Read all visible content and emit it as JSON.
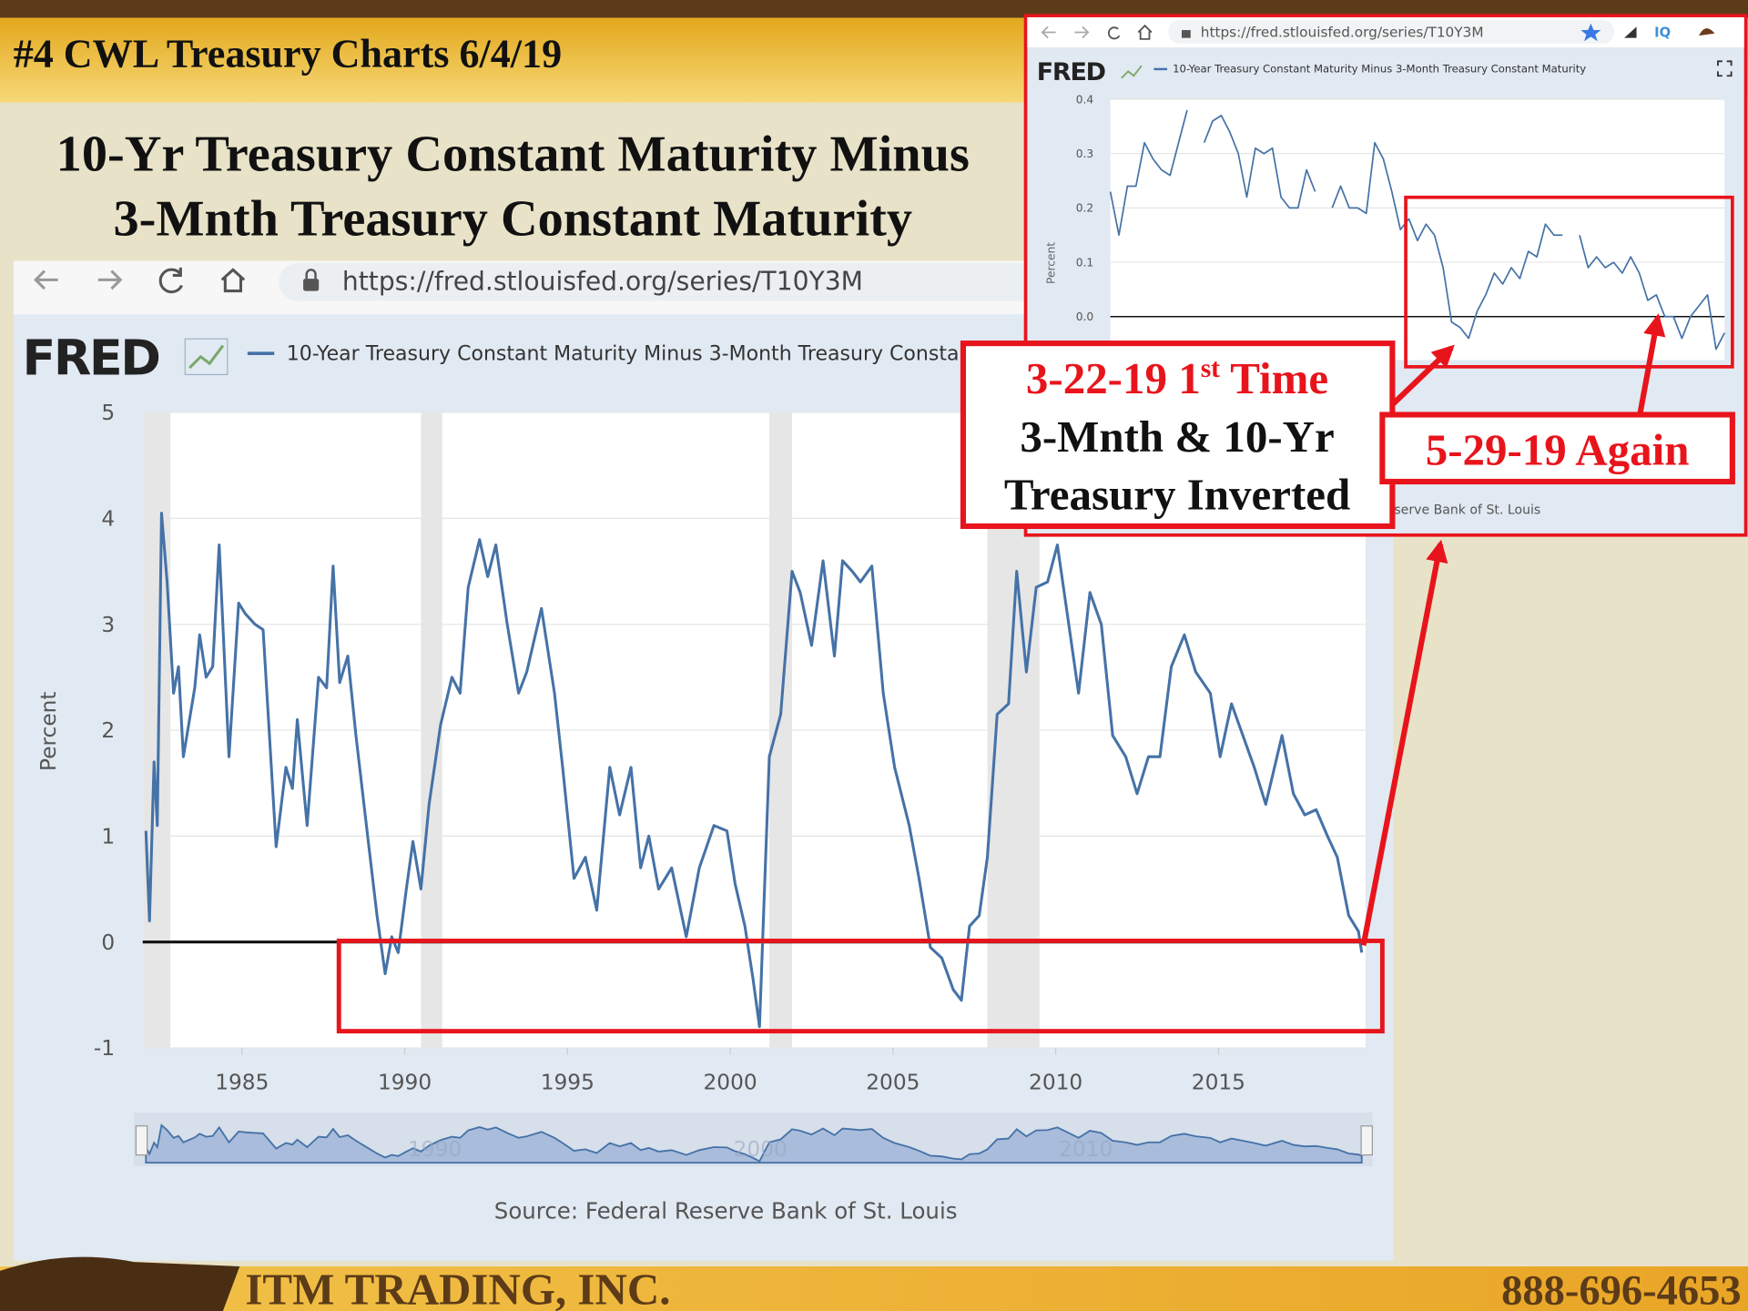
{
  "slide": {
    "header": "#4 CWL Treasury Charts 6/4/19",
    "title": [
      "10-Yr Treasury Constant Maturity Minus",
      "3-Mnth Treasury Constant Maturity"
    ],
    "footer": {
      "company": "ITM TRADING, INC.",
      "phone": "888-696-4653"
    }
  },
  "annotations": {
    "first": {
      "prefix": "3-22-19 1",
      "sup": "st",
      "suffix": " Time"
    },
    "lines": [
      "3-Mnth & 10-Yr",
      "Treasury Inverted"
    ],
    "again": "5-29-19 Again"
  },
  "chart_data": [
    {
      "type": "line",
      "url": "https://fred.stlouisfed.org/series/T10Y3M",
      "brand": "FRED",
      "y_label": "Percent",
      "source": "Source: Federal Reserve Bank of St. Louis",
      "series": [
        {
          "name": "10-Year Treasury Constant Maturity Minus 3-Month Treasury Constant Maturity",
          "color": "#4572a7",
          "x": [
            1982.05,
            1982.16,
            1982.3,
            1982.4,
            1982.53,
            1982.7,
            1982.9,
            1983.05,
            1983.2,
            1983.55,
            1983.7,
            1983.9,
            1984.1,
            1984.3,
            1984.6,
            1984.9,
            1985.1,
            1985.4,
            1985.65,
            1986.05,
            1986.35,
            1986.55,
            1986.7,
            1987.0,
            1987.35,
            1987.6,
            1987.8,
            1988.0,
            1988.25,
            1988.5,
            1988.9,
            1989.15,
            1989.4,
            1989.6,
            1989.8,
            1990.05,
            1990.25,
            1990.5,
            1990.75,
            1991.1,
            1991.45,
            1991.7,
            1991.95,
            1992.3,
            1992.55,
            1992.8,
            1993.15,
            1993.5,
            1993.75,
            1994.2,
            1994.6,
            1994.85,
            1995.2,
            1995.55,
            1995.9,
            1996.3,
            1996.6,
            1996.95,
            1997.25,
            1997.5,
            1997.8,
            1998.2,
            1998.65,
            1999.05,
            1999.5,
            1999.9,
            2000.15,
            2000.45,
            2000.7,
            2000.9,
            2001.2,
            2001.55,
            2001.9,
            2002.15,
            2002.5,
            2002.85,
            2003.2,
            2003.45,
            2003.75,
            2004.0,
            2004.35,
            2004.7,
            2005.05,
            2005.5,
            2005.8,
            2006.15,
            2006.5,
            2006.85,
            2007.1,
            2007.35,
            2007.65,
            2007.9,
            2008.2,
            2008.55,
            2008.8,
            2009.1,
            2009.4,
            2009.75,
            2010.05,
            2010.4,
            2010.7,
            2011.05,
            2011.4,
            2011.75,
            2012.15,
            2012.5,
            2012.85,
            2013.2,
            2013.55,
            2013.95,
            2014.3,
            2014.75,
            2015.05,
            2015.4,
            2015.75,
            2016.1,
            2016.45,
            2016.95,
            2017.3,
            2017.65,
            2018.0,
            2018.35,
            2018.65,
            2019.0,
            2019.3,
            2019.4
          ],
          "values": [
            1.05,
            0.2,
            1.7,
            1.1,
            4.05,
            3.4,
            2.35,
            2.6,
            1.75,
            2.4,
            2.9,
            2.5,
            2.6,
            3.75,
            1.75,
            3.2,
            3.1,
            3.0,
            2.95,
            0.9,
            1.65,
            1.45,
            2.1,
            1.1,
            2.5,
            2.4,
            3.55,
            2.45,
            2.7,
            1.95,
            0.9,
            0.25,
            -0.3,
            0.05,
            -0.1,
            0.5,
            0.95,
            0.5,
            1.3,
            2.05,
            2.5,
            2.35,
            3.35,
            3.8,
            3.45,
            3.75,
            3.0,
            2.35,
            2.55,
            3.15,
            2.35,
            1.65,
            0.6,
            0.8,
            0.3,
            1.65,
            1.2,
            1.65,
            0.7,
            1.0,
            0.5,
            0.7,
            0.05,
            0.7,
            1.1,
            1.05,
            0.55,
            0.15,
            -0.35,
            -0.8,
            1.75,
            2.15,
            3.5,
            3.3,
            2.8,
            3.6,
            2.7,
            3.6,
            3.5,
            3.4,
            3.55,
            2.35,
            1.65,
            1.1,
            0.6,
            -0.05,
            -0.15,
            -0.45,
            -0.55,
            0.15,
            0.25,
            0.8,
            2.15,
            2.25,
            3.5,
            2.55,
            3.35,
            3.4,
            3.75,
            3.0,
            2.35,
            3.3,
            3.0,
            1.95,
            1.75,
            1.4,
            1.75,
            1.75,
            2.6,
            2.9,
            2.55,
            2.35,
            1.75,
            2.25,
            1.95,
            1.65,
            1.3,
            1.95,
            1.4,
            1.2,
            1.25,
            1.0,
            0.8,
            0.25,
            0.1,
            -0.1
          ]
        }
      ],
      "xlim": [
        1981.95,
        2019.52
      ],
      "ylim": [
        -1,
        5
      ],
      "xticks": [
        1985,
        1990,
        1995,
        2000,
        2005,
        2010,
        2015
      ],
      "yticks": [
        5,
        4,
        3,
        2,
        1,
        0,
        -1
      ],
      "grid": true,
      "shaded_periods": [
        [
          1981.95,
          1982.8
        ],
        [
          1990.5,
          1991.15
        ],
        [
          2001.2,
          2001.9
        ],
        [
          2007.9,
          2009.5
        ]
      ],
      "navigator_ticks": [
        1990,
        2000,
        2010
      ]
    },
    {
      "type": "line",
      "url": "https://fred.stlouisfed.org/series/T10Y3M",
      "brand": "FRED",
      "extension": "IQ",
      "y_label": "Percent",
      "source": "Source: Federal Reserve Bank of St. Louis",
      "series": [
        {
          "name": "10-Year Treasury Constant Maturity Minus 3-Month Treasury Constant Maturity",
          "color": "#4572a7",
          "values": [
            0.23,
            0.15,
            0.24,
            0.24,
            0.32,
            0.29,
            0.27,
            0.26,
            0.32,
            0.38,
            null,
            0.32,
            0.36,
            0.37,
            0.34,
            0.3,
            0.22,
            0.31,
            0.3,
            0.31,
            0.22,
            0.2,
            0.2,
            0.27,
            0.23,
            null,
            0.2,
            0.24,
            0.2,
            0.2,
            0.19,
            0.32,
            0.29,
            0.23,
            0.16,
            0.18,
            0.14,
            0.17,
            0.15,
            0.09,
            -0.01,
            -0.02,
            -0.04,
            0.01,
            0.04,
            0.08,
            0.06,
            0.09,
            0.07,
            0.12,
            0.11,
            0.17,
            0.15,
            0.15,
            null,
            0.15,
            0.09,
            0.11,
            0.09,
            0.1,
            0.08,
            0.11,
            0.08,
            0.03,
            0.04,
            0,
            0,
            -0.04,
            0,
            0.02,
            0.04,
            -0.06,
            -0.03
          ]
        }
      ],
      "ylim": [
        -0.08,
        0.4
      ],
      "yticks": [
        0.4,
        0.3,
        0.2,
        0.1,
        {
          "value": 0,
          "label": "0.0"
        }
      ],
      "grid": true
    }
  ]
}
